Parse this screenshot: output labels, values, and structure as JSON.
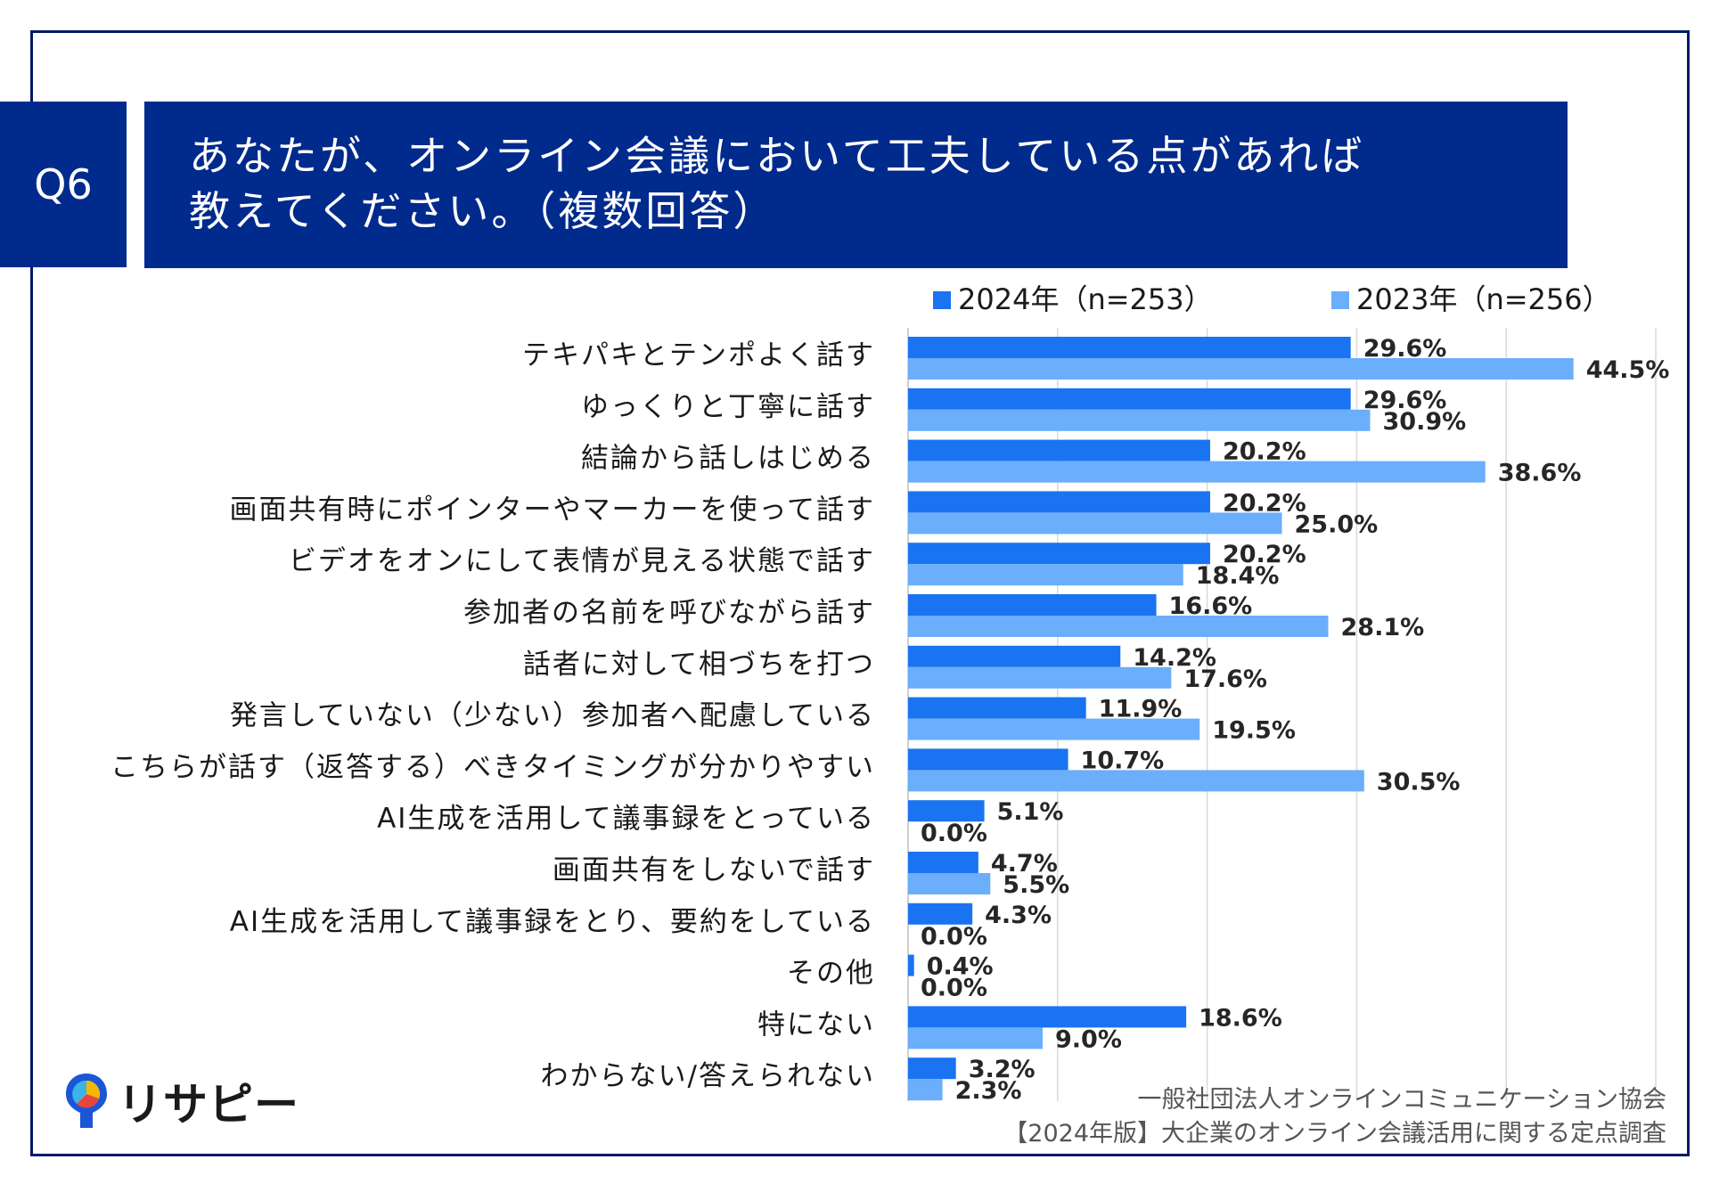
{
  "header": {
    "badge": "Q6",
    "title_line1": "あなたが、オンライン会議において工夫している点があれば",
    "title_line2": "教えてください。（複数回答）"
  },
  "chart_data": {
    "type": "bar",
    "orientation": "horizontal",
    "categories": [
      "テキパキとテンポよく話す",
      "ゆっくりと丁寧に話す",
      "結論から話しはじめる",
      "画面共有時にポインターやマーカーを使って話す",
      "ビデオをオンにして表情が見える状態で話す",
      "参加者の名前を呼びながら話す",
      "話者に対して相づちを打つ",
      "発言していない（少ない）参加者へ配慮している",
      "こちらが話す（返答する）べきタイミングが分かりやすい",
      "AI生成を活用して議事録をとっている",
      "画面共有をしないで話す",
      "AI生成を活用して議事録をとり、要約をしている",
      "その他",
      "特にない",
      "わからない/答えられない"
    ],
    "series": [
      {
        "name": "2024年（n=253）",
        "color": "#1a73f0",
        "values": [
          29.6,
          29.6,
          20.2,
          20.2,
          20.2,
          16.6,
          14.2,
          11.9,
          10.7,
          5.1,
          4.7,
          4.3,
          0.4,
          18.6,
          3.2
        ],
        "labels": [
          "29.6%",
          "29.6%",
          "20.2%",
          "20.2%",
          "20.2%",
          "16.6%",
          "14.2%",
          "11.9%",
          "10.7%",
          "5.1%",
          "4.7%",
          "4.3%",
          "0.4%",
          "18.6%",
          "3.2%"
        ]
      },
      {
        "name": "2023年（n=256）",
        "color": "#6aaefc",
        "values": [
          44.5,
          30.9,
          38.6,
          25.0,
          18.4,
          28.1,
          17.6,
          19.5,
          30.5,
          0.0,
          5.5,
          0.0,
          0.0,
          9.0,
          2.3
        ],
        "labels": [
          "44.5%",
          "30.9%",
          "38.6%",
          "25.0%",
          "18.4%",
          "28.1%",
          "17.6%",
          "19.5%",
          "30.5%",
          "0.0%",
          "5.5%",
          "0.0%",
          "0.0%",
          "9.0%",
          "2.3%"
        ]
      }
    ],
    "xlim": [
      0,
      50
    ],
    "grid": true,
    "legend": "top"
  },
  "footer": {
    "logo_text": "リサピー",
    "credit_line1": "一般社団法人オンラインコミュニケーション協会",
    "credit_line2": "【2024年版】大企業のオンライン会議活用に関する定点調査"
  }
}
